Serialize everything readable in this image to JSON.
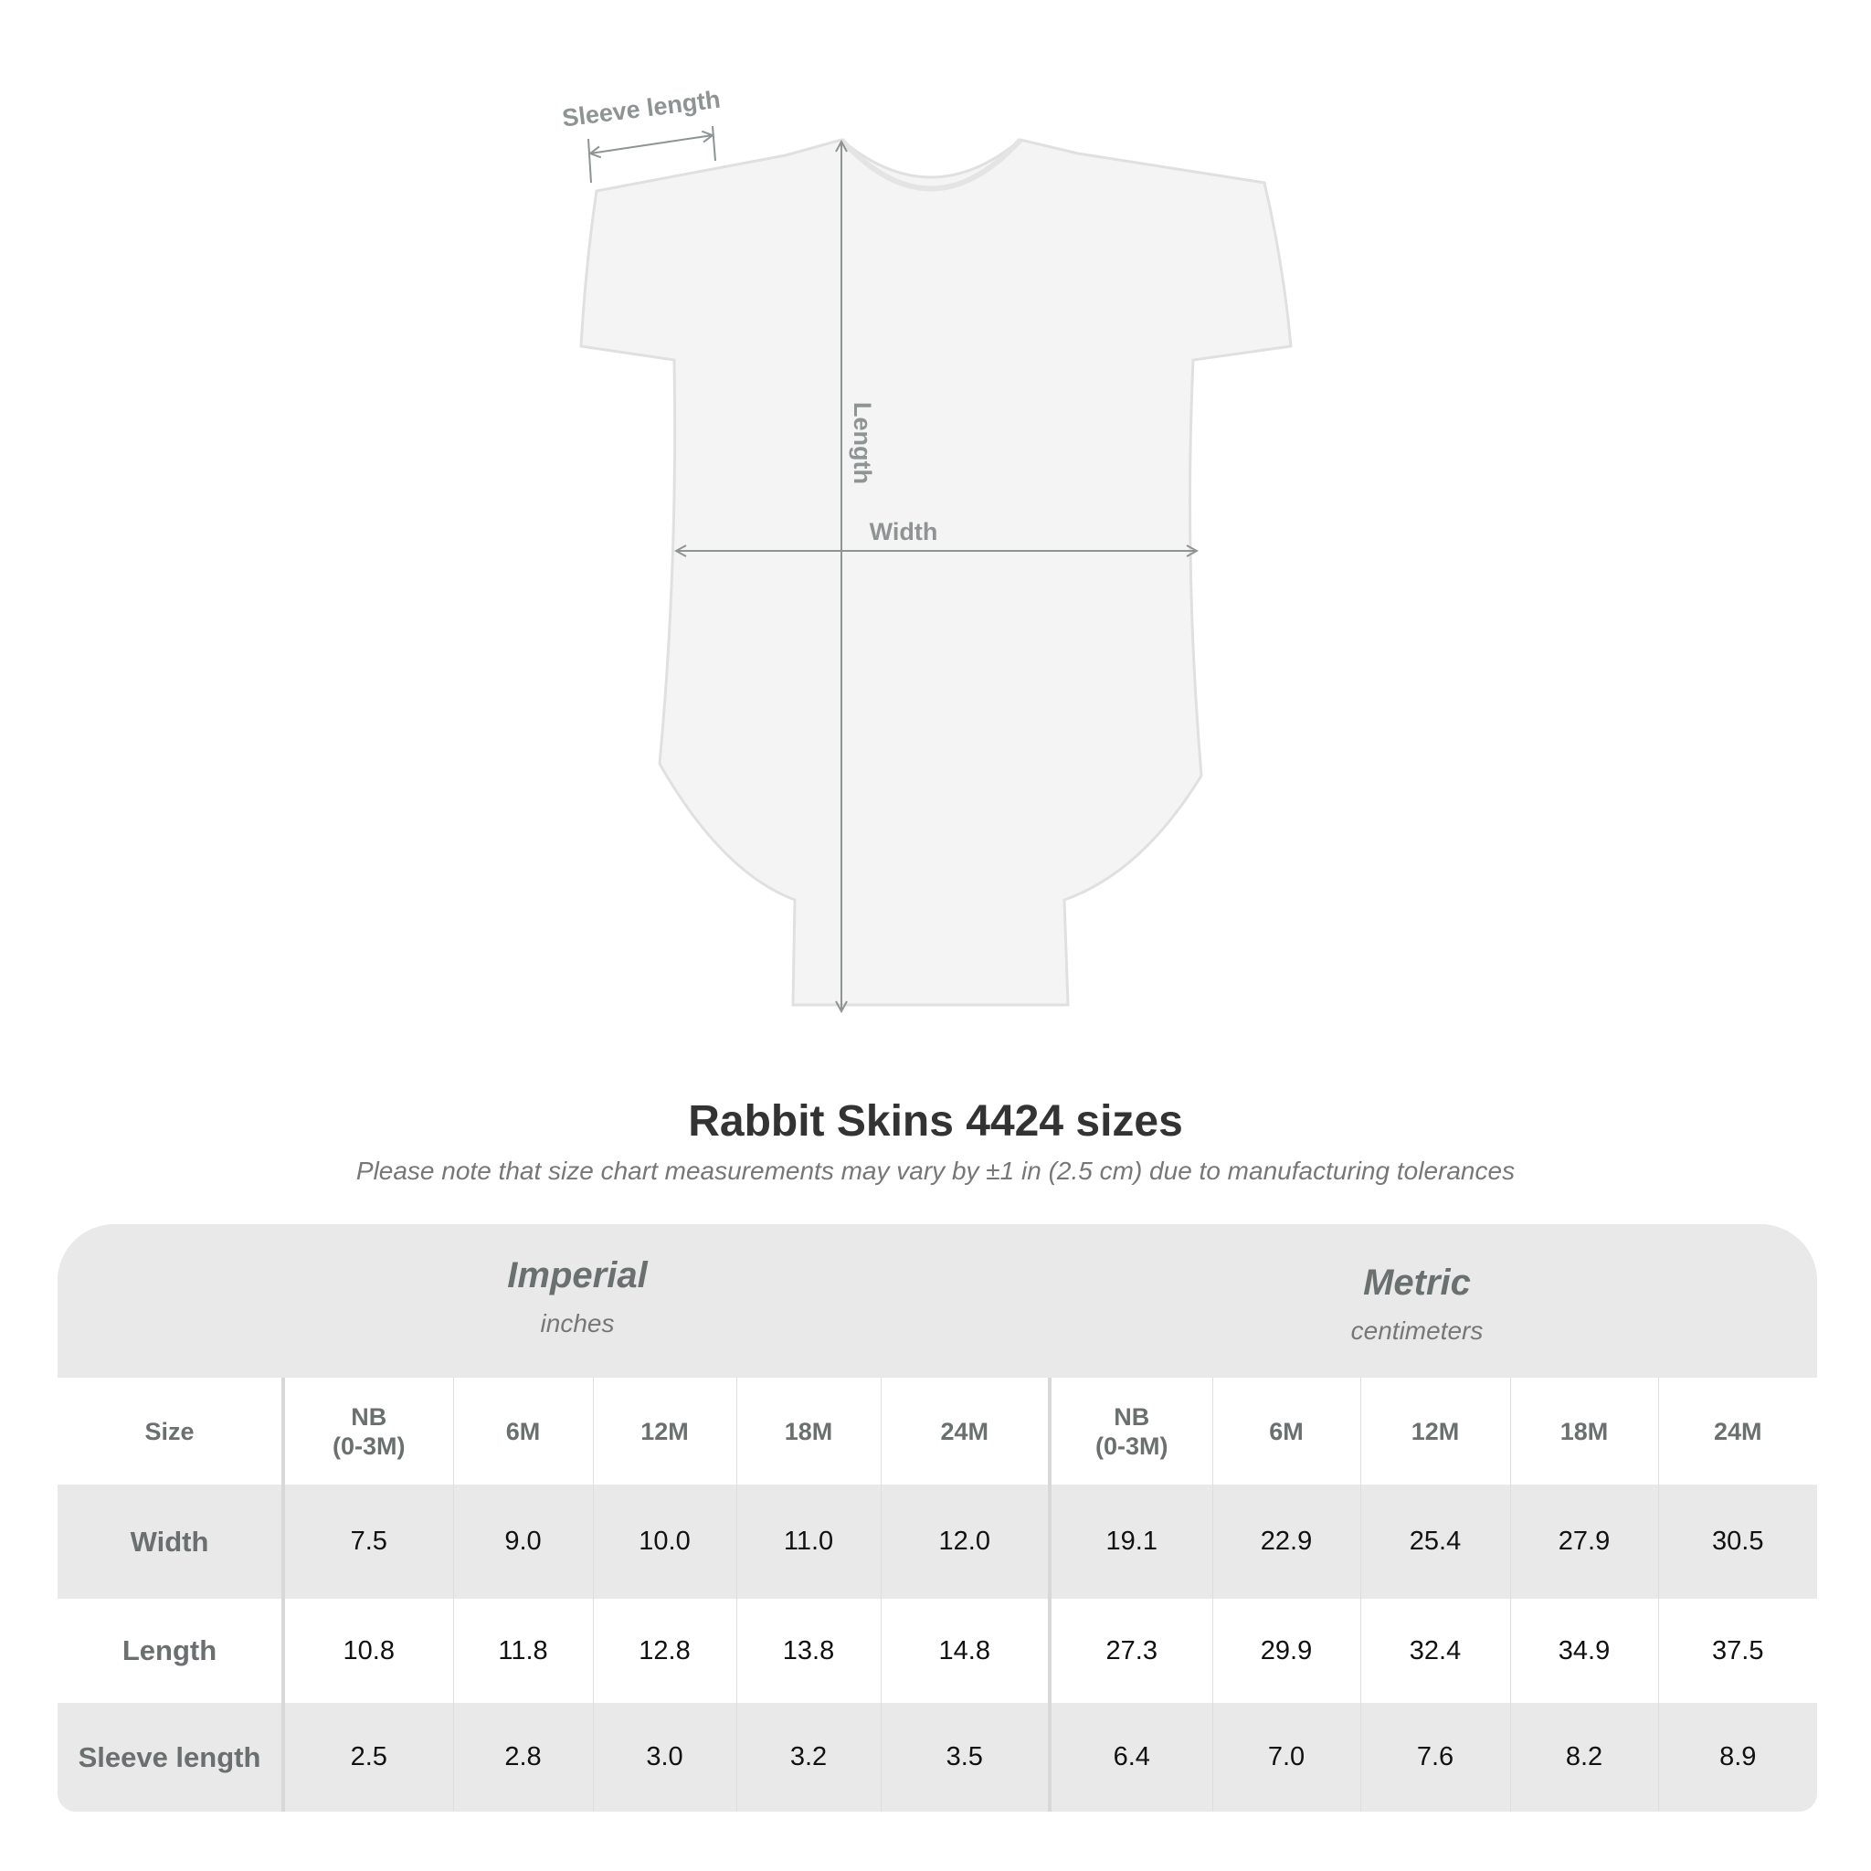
{
  "diagram": {
    "labels": {
      "sleeve": "Sleeve length",
      "length": "Length",
      "width": "Width"
    },
    "measure_color": "#8e9494"
  },
  "header": {
    "title": "Rabbit Skins 4424 sizes",
    "note": "Please note that size chart measurements may vary by ±1 in (2.5 cm) due to manufacturing tolerances"
  },
  "table": {
    "groups": [
      {
        "name": "Imperial",
        "unit": "inches"
      },
      {
        "name": "Metric",
        "unit": "centimeters"
      }
    ],
    "size_label": "Size",
    "sizes": [
      {
        "line1": "NB",
        "line2": "(0-3M)"
      },
      {
        "line1": "6M"
      },
      {
        "line1": "12M"
      },
      {
        "line1": "18M"
      },
      {
        "line1": "24M"
      },
      {
        "line1": "NB",
        "line2": "(0-3M)"
      },
      {
        "line1": "6M"
      },
      {
        "line1": "12M"
      },
      {
        "line1": "18M"
      },
      {
        "line1": "24M"
      }
    ],
    "rows": [
      {
        "label": "Width",
        "values": [
          "7.5",
          "9.0",
          "10.0",
          "11.0",
          "12.0",
          "19.1",
          "22.9",
          "25.4",
          "27.9",
          "30.5"
        ]
      },
      {
        "label": "Length",
        "values": [
          "10.8",
          "11.8",
          "12.8",
          "13.8",
          "14.8",
          "27.3",
          "29.9",
          "32.4",
          "34.9",
          "37.5"
        ]
      },
      {
        "label": "Sleeve length",
        "values": [
          "2.5",
          "2.8",
          "3.0",
          "3.2",
          "3.5",
          "6.4",
          "7.0",
          "7.6",
          "8.2",
          "8.9"
        ]
      }
    ]
  }
}
